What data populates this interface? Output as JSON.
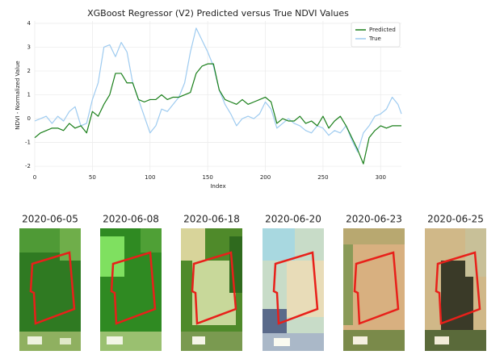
{
  "chart_data": {
    "type": "line",
    "title": "XGBoost Regressor (V2) Predicted versus True NDVI Values",
    "x_label": "Index",
    "y_label": "NDVI - Normalized Value",
    "x": [
      0,
      5,
      10,
      15,
      20,
      25,
      30,
      35,
      40,
      45,
      50,
      55,
      60,
      65,
      70,
      75,
      80,
      85,
      90,
      95,
      100,
      105,
      110,
      115,
      120,
      125,
      130,
      135,
      140,
      145,
      150,
      155,
      160,
      165,
      170,
      175,
      180,
      185,
      190,
      195,
      200,
      205,
      210,
      215,
      220,
      225,
      230,
      235,
      240,
      245,
      250,
      255,
      260,
      265,
      270,
      275,
      280,
      285,
      290,
      295,
      300,
      305,
      310,
      315,
      318
    ],
    "series": [
      {
        "name": "Predicted",
        "color": "#1a7f1a",
        "values": [
          -0.8,
          -0.6,
          -0.5,
          -0.4,
          -0.4,
          -0.5,
          -0.2,
          -0.4,
          -0.3,
          -0.6,
          0.3,
          0.1,
          0.6,
          1.0,
          1.9,
          1.9,
          1.5,
          1.5,
          0.8,
          0.7,
          0.8,
          0.8,
          1.0,
          0.8,
          0.9,
          0.9,
          1.0,
          1.1,
          1.9,
          2.2,
          2.3,
          2.3,
          1.2,
          0.8,
          0.7,
          0.6,
          0.8,
          0.6,
          0.7,
          0.8,
          0.9,
          0.7,
          -0.2,
          0.0,
          -0.1,
          -0.1,
          0.1,
          -0.2,
          -0.1,
          -0.3,
          0.1,
          -0.4,
          -0.1,
          0.1,
          -0.3,
          -0.8,
          -1.3,
          -1.9,
          -0.8,
          -0.5,
          -0.3,
          -0.4,
          -0.3,
          -0.3,
          -0.3
        ]
      },
      {
        "name": "True",
        "color": "#9ecbf0",
        "values": [
          -0.1,
          0.0,
          0.1,
          -0.2,
          0.1,
          -0.1,
          0.3,
          0.5,
          -0.3,
          -0.2,
          0.8,
          1.5,
          3.0,
          3.1,
          2.6,
          3.2,
          2.8,
          1.5,
          0.8,
          0.1,
          -0.6,
          -0.3,
          0.4,
          0.3,
          0.6,
          0.9,
          1.5,
          2.8,
          3.8,
          3.3,
          2.8,
          2.2,
          1.2,
          0.6,
          0.2,
          -0.3,
          0.0,
          0.1,
          0.0,
          0.2,
          0.7,
          0.4,
          -0.4,
          -0.2,
          0.0,
          -0.2,
          -0.3,
          -0.5,
          -0.6,
          -0.3,
          -0.4,
          -0.7,
          -0.5,
          -0.6,
          -0.3,
          -0.9,
          -1.4,
          -0.6,
          -0.3,
          0.1,
          0.2,
          0.4,
          0.9,
          0.6,
          0.2
        ]
      }
    ],
    "xlim": [
      0,
      318
    ],
    "ylim": [
      -2.2,
      4.1
    ],
    "xticks": [
      0,
      50,
      100,
      150,
      200,
      250,
      300
    ],
    "yticks": [
      -2,
      -1,
      0,
      1,
      2,
      3,
      4
    ],
    "grid": true,
    "legend": "upper right"
  },
  "image_panels": [
    {
      "date": "2020-06-05"
    },
    {
      "date": "2020-06-08"
    },
    {
      "date": "2020-06-18"
    },
    {
      "date": "2020-06-20"
    },
    {
      "date": "2020-06-23"
    },
    {
      "date": "2020-06-25"
    }
  ]
}
